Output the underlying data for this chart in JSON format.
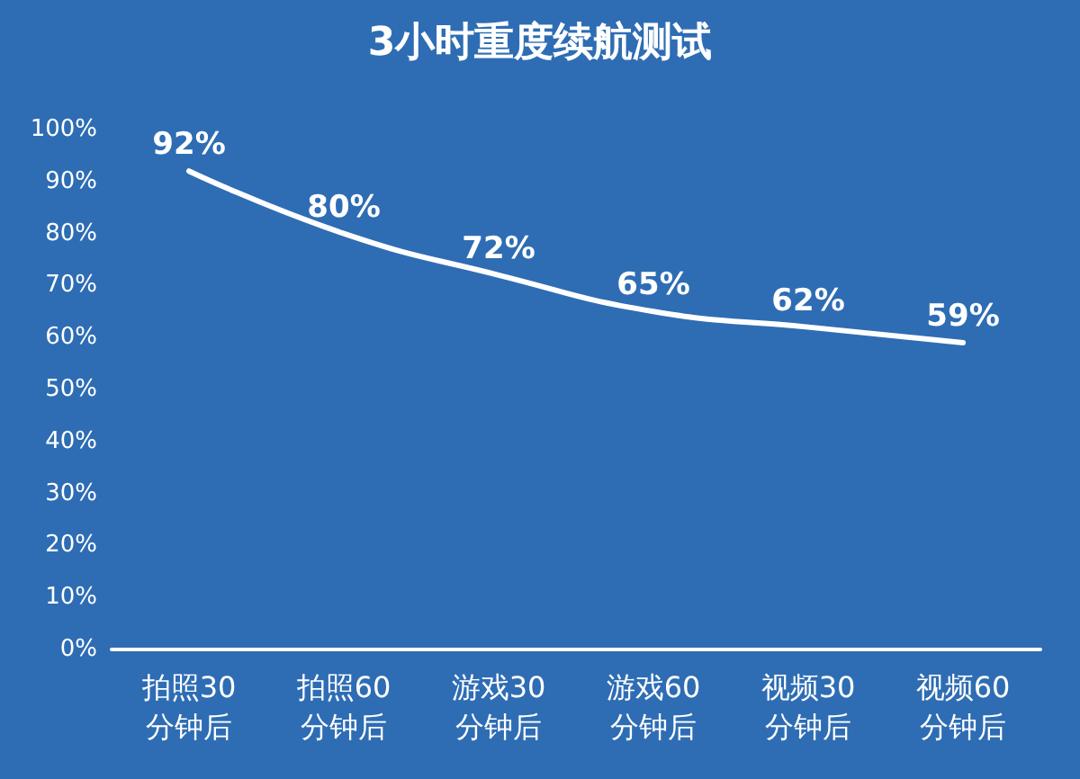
{
  "chart_data": {
    "type": "line",
    "title": "3小时重度续航测试",
    "categories": [
      "拍照30\n分钟后",
      "拍照60\n分钟后",
      "游戏30\n分钟后",
      "游戏60\n分钟后",
      "视频30\n分钟后",
      "视频60\n分钟后"
    ],
    "series": [
      {
        "color": "#ffffff",
        "values": [
          92,
          80,
          72,
          65,
          62,
          59
        ]
      }
    ],
    "ylim": [
      0,
      100
    ],
    "yticks": [
      {
        "value": 0,
        "label": "0%"
      },
      {
        "value": 10,
        "label": "10%"
      },
      {
        "value": 20,
        "label": "20%"
      },
      {
        "value": 30,
        "label": "30%"
      },
      {
        "value": 40,
        "label": "40%"
      },
      {
        "value": 50,
        "label": "50%"
      },
      {
        "value": 60,
        "label": "60%"
      },
      {
        "value": 70,
        "label": "70%"
      },
      {
        "value": 80,
        "label": "80%"
      },
      {
        "value": 90,
        "label": "90%"
      },
      {
        "value": 100,
        "label": "100%"
      }
    ],
    "value_labels": [
      "92%",
      "80%",
      "72%",
      "65%",
      "62%",
      "59%"
    ],
    "grid": false,
    "marker": "none",
    "line_style": "solid"
  }
}
